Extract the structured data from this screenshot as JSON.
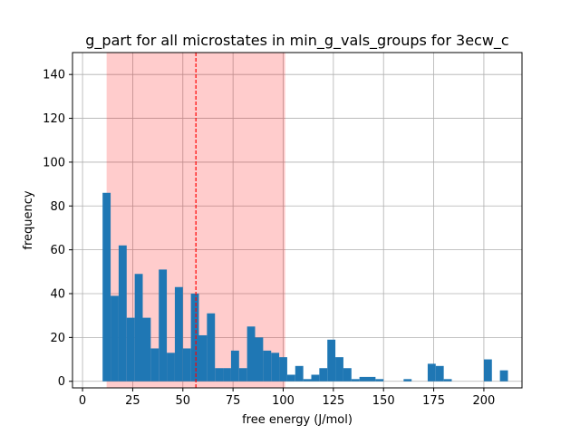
{
  "chart_data": {
    "type": "bar",
    "title": "g_part for all microstates in min_g_vals_groups for 3ecw_c",
    "xlabel": "free energy (J/mol)",
    "ylabel": "frequency",
    "xlim": [
      -5,
      219
    ],
    "ylim": [
      -3,
      150
    ],
    "xticks": [
      0,
      25,
      50,
      75,
      100,
      125,
      150,
      175,
      200
    ],
    "yticks": [
      0,
      20,
      40,
      60,
      80,
      100,
      120,
      140
    ],
    "grid": true,
    "bin_width": 4.0,
    "bins": [
      {
        "x": 10.0,
        "y": 86
      },
      {
        "x": 14.0,
        "y": 39
      },
      {
        "x": 18.0,
        "y": 62
      },
      {
        "x": 22.0,
        "y": 29
      },
      {
        "x": 26.0,
        "y": 49
      },
      {
        "x": 30.0,
        "y": 29
      },
      {
        "x": 34.0,
        "y": 15
      },
      {
        "x": 38.0,
        "y": 51
      },
      {
        "x": 42.0,
        "y": 13
      },
      {
        "x": 46.0,
        "y": 43
      },
      {
        "x": 50.0,
        "y": 15
      },
      {
        "x": 54.0,
        "y": 40
      },
      {
        "x": 58.0,
        "y": 21
      },
      {
        "x": 62.0,
        "y": 31
      },
      {
        "x": 66.0,
        "y": 6
      },
      {
        "x": 70.0,
        "y": 6
      },
      {
        "x": 74.0,
        "y": 14
      },
      {
        "x": 78.0,
        "y": 6
      },
      {
        "x": 82.0,
        "y": 25
      },
      {
        "x": 86.0,
        "y": 20
      },
      {
        "x": 90.0,
        "y": 14
      },
      {
        "x": 94.0,
        "y": 13
      },
      {
        "x": 98.0,
        "y": 11
      },
      {
        "x": 102.0,
        "y": 3
      },
      {
        "x": 106.0,
        "y": 7
      },
      {
        "x": 110.0,
        "y": 1
      },
      {
        "x": 114.0,
        "y": 3
      },
      {
        "x": 118.0,
        "y": 6
      },
      {
        "x": 122.0,
        "y": 19
      },
      {
        "x": 126.0,
        "y": 11
      },
      {
        "x": 130.0,
        "y": 6
      },
      {
        "x": 134.0,
        "y": 1
      },
      {
        "x": 138.0,
        "y": 2
      },
      {
        "x": 142.0,
        "y": 2
      },
      {
        "x": 146.0,
        "y": 1
      },
      {
        "x": 160.0,
        "y": 1
      },
      {
        "x": 172.0,
        "y": 8
      },
      {
        "x": 176.0,
        "y": 7
      },
      {
        "x": 180.0,
        "y": 1
      },
      {
        "x": 200.0,
        "y": 10
      },
      {
        "x": 208.0,
        "y": 5
      }
    ],
    "shaded_range": [
      12.0,
      101.0
    ],
    "mean_line_x": 56.5,
    "colors": {
      "bar": "#1f77b4",
      "shade": "#ff0000",
      "shade_alpha": 0.2,
      "mean_line": "#ff0000",
      "grid": "#b0b0b0"
    }
  }
}
